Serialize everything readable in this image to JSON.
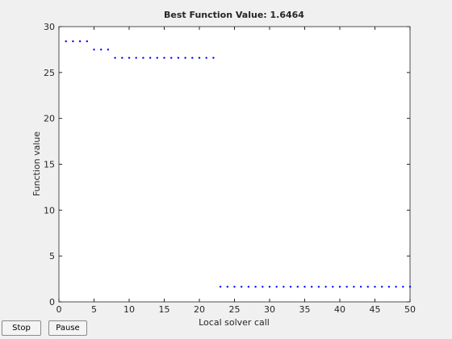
{
  "chart_data": {
    "type": "scatter",
    "title": "Best Function Value: 1.6464",
    "x_label": "Local solver call",
    "y_label": "Function value",
    "x": [
      1,
      2,
      3,
      4,
      5,
      6,
      7,
      8,
      9,
      10,
      11,
      12,
      13,
      14,
      15,
      16,
      17,
      18,
      19,
      20,
      21,
      22,
      23,
      24,
      25,
      26,
      27,
      28,
      29,
      30,
      31,
      32,
      33,
      34,
      35,
      36,
      37,
      38,
      39,
      40,
      41,
      42,
      43,
      44,
      45,
      46,
      47,
      48,
      49,
      50
    ],
    "values": [
      28.4,
      28.4,
      28.4,
      28.4,
      27.5,
      27.5,
      27.5,
      26.6,
      26.6,
      26.6,
      26.6,
      26.6,
      26.6,
      26.6,
      26.6,
      26.6,
      26.6,
      26.6,
      26.6,
      26.6,
      26.6,
      26.6,
      1.6464,
      1.6464,
      1.6464,
      1.6464,
      1.6464,
      1.6464,
      1.6464,
      1.6464,
      1.6464,
      1.6464,
      1.6464,
      1.6464,
      1.6464,
      1.6464,
      1.6464,
      1.6464,
      1.6464,
      1.6464,
      1.6464,
      1.6464,
      1.6464,
      1.6464,
      1.6464,
      1.6464,
      1.6464,
      1.6464,
      1.6464,
      1.6464
    ],
    "color": "#0000ff",
    "xlim": [
      0,
      50
    ],
    "ylim": [
      0,
      30
    ],
    "xticks": [
      0,
      5,
      10,
      15,
      20,
      25,
      30,
      35,
      40,
      45,
      50
    ],
    "yticks": [
      0,
      5,
      10,
      15,
      20,
      25,
      30
    ]
  },
  "controls": {
    "buttons": [
      "Stop",
      "Pause"
    ]
  }
}
